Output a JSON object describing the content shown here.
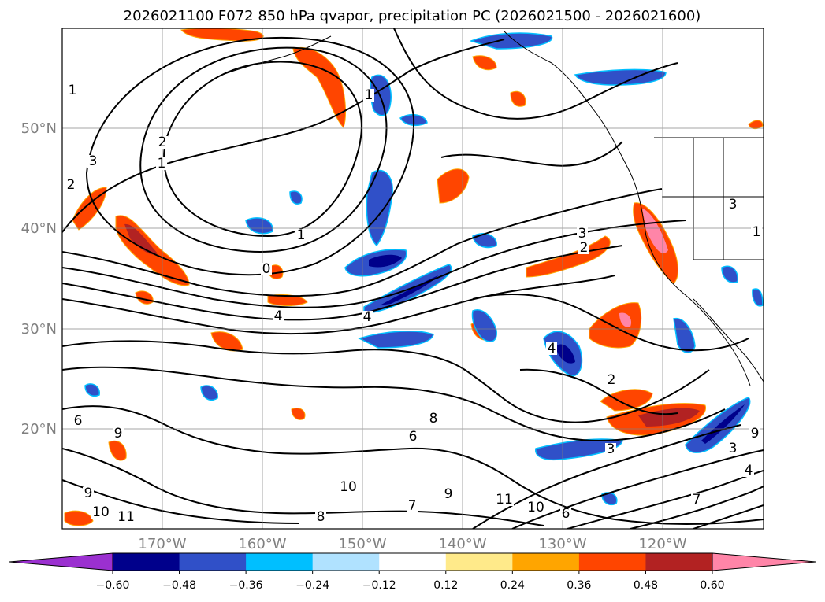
{
  "title": "2026021100 F072 850 hPa qvapor, precipitation PC (2026021500 - 2026021600)",
  "map": {
    "lat_labels": [
      "50°N",
      "40°N",
      "30°N",
      "20°N"
    ],
    "lon_labels": [
      "170°W",
      "160°W",
      "150°W",
      "140°W",
      "130°W",
      "120°W"
    ],
    "grid": true,
    "label_color": "#808080"
  },
  "contour_labels": [
    "1",
    "1",
    "1",
    "1",
    "2",
    "3",
    "2",
    "4",
    "4",
    "0",
    "3",
    "2",
    "3",
    "1",
    "4",
    "2",
    "6",
    "9",
    "6",
    "8",
    "9",
    "10",
    "11",
    "10",
    "8",
    "7",
    "9",
    "11",
    "10",
    "6",
    "7",
    "4",
    "3",
    "3",
    "9"
  ],
  "colorbar": {
    "extend": "both",
    "ticks": [
      "−0.60",
      "−0.48",
      "−0.36",
      "−0.24",
      "−0.12",
      "0.12",
      "0.24",
      "0.36",
      "0.48",
      "0.60"
    ],
    "colors": [
      "#9b30d0",
      "#00008b",
      "#3050c8",
      "#00bfff",
      "#b0e2ff",
      "#ffffff",
      "#ffea8a",
      "#ffa500",
      "#ff4500",
      "#b22222",
      "#ff85a8"
    ]
  }
}
